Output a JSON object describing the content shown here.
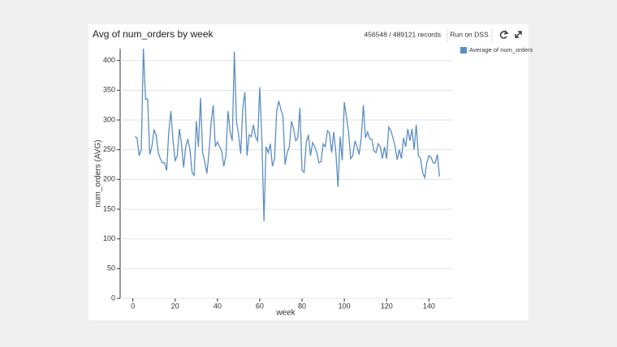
{
  "header": {
    "records": "456548 / 489121 records",
    "run_button": "Run on DSS"
  },
  "chart_data": {
    "type": "line",
    "title": "Avg of num_orders by week",
    "x_label": "week",
    "y_label": "num_orders (AVG)",
    "x": [
      1,
      2,
      3,
      4,
      5,
      6,
      7,
      8,
      9,
      10,
      11,
      12,
      13,
      14,
      15,
      16,
      17,
      18,
      19,
      20,
      21,
      22,
      23,
      24,
      25,
      26,
      27,
      28,
      29,
      30,
      31,
      32,
      33,
      34,
      35,
      36,
      37,
      38,
      39,
      40,
      41,
      42,
      43,
      44,
      45,
      46,
      47,
      48,
      49,
      50,
      51,
      52,
      53,
      54,
      55,
      56,
      57,
      58,
      59,
      60,
      61,
      62,
      63,
      64,
      65,
      66,
      67,
      68,
      69,
      70,
      71,
      72,
      73,
      74,
      75,
      76,
      77,
      78,
      79,
      80,
      81,
      82,
      83,
      84,
      85,
      86,
      87,
      88,
      89,
      90,
      91,
      92,
      93,
      94,
      95,
      96,
      97,
      98,
      99,
      100,
      101,
      102,
      103,
      104,
      105,
      106,
      107,
      108,
      109,
      110,
      111,
      112,
      113,
      114,
      115,
      116,
      117,
      118,
      119,
      120,
      121,
      122,
      123,
      124,
      125,
      126,
      127,
      128,
      129,
      130,
      131,
      132,
      133,
      134,
      135,
      136,
      137,
      138,
      139,
      140,
      141,
      142,
      143,
      144,
      145
    ],
    "series": [
      {
        "name": "Average of num_orders",
        "color": "#5b8ec4",
        "values": [
          272,
          270,
          240,
          250,
          420,
          335,
          335,
          242,
          255,
          283,
          275,
          245,
          235,
          228,
          228,
          215,
          280,
          315,
          265,
          232,
          240,
          285,
          260,
          220,
          255,
          268,
          250,
          212,
          207,
          298,
          255,
          337,
          245,
          230,
          210,
          245,
          295,
          325,
          255,
          263,
          255,
          248,
          222,
          240,
          315,
          280,
          265,
          415,
          298,
          275,
          243,
          320,
          347,
          240,
          275,
          272,
          292,
          272,
          265,
          355,
          270,
          130,
          255,
          245,
          260,
          222,
          235,
          315,
          332,
          318,
          305,
          225,
          245,
          255,
          298,
          285,
          265,
          270,
          320,
          215,
          212,
          262,
          275,
          240,
          262,
          255,
          245,
          228,
          230,
          260,
          255,
          282,
          278,
          245,
          280,
          245,
          187,
          272,
          232,
          330,
          305,
          280,
          235,
          240,
          265,
          255,
          242,
          270,
          325,
          270,
          280,
          268,
          268,
          248,
          245,
          260,
          255,
          235,
          255,
          235,
          288,
          282,
          270,
          255,
          233,
          250,
          235,
          270,
          255,
          285,
          265,
          285,
          250,
          292,
          240,
          235,
          212,
          203,
          228,
          240,
          237,
          228,
          228,
          242,
          205
        ]
      }
    ],
    "xlim": [
      -6,
      151
    ],
    "ylim": [
      0,
      420
    ],
    "xticks": [
      0,
      20,
      40,
      60,
      80,
      100,
      120,
      140
    ],
    "yticks": [
      0,
      50,
      100,
      150,
      200,
      250,
      300,
      350,
      400
    ],
    "legend": "top-right"
  }
}
